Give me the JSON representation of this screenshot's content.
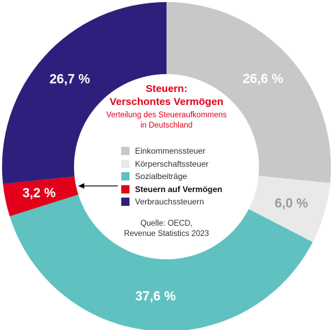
{
  "chart_data": {
    "type": "pie",
    "title": "Steuern:",
    "title_line2": "Verschontes Vermögen",
    "subtitle": "Verteilung des Steueraufkommens",
    "subtitle_line2": "in Deutschland",
    "source_line1": "Quelle: OECD,",
    "source_line2": "Revenue Statistics 2023",
    "legend_placement": "center",
    "slices": [
      {
        "name": "Einkommenssteuer",
        "value": 26.6,
        "label": "26,6 %",
        "color": "#c8c8c8",
        "label_color": "#ffffff"
      },
      {
        "name": "Körperschaftssteuer",
        "value": 6.0,
        "label": "6,0 %",
        "color": "#e9e9e9",
        "label_color": "#9a9a9a"
      },
      {
        "name": "Sozialbeiträge",
        "value": 37.6,
        "label": "37,6 %",
        "color": "#5fc1c0",
        "label_color": "#ffffff"
      },
      {
        "name": "Steuern auf Vermögen",
        "value": 3.2,
        "label": "3,2 %",
        "color": "#e2001a",
        "label_color": "#ffffff",
        "highlight": true
      },
      {
        "name": "Verbrauchssteuern",
        "value": 26.7,
        "label": "26,7 %",
        "color": "#2e1f7c",
        "label_color": "#ffffff"
      }
    ]
  }
}
